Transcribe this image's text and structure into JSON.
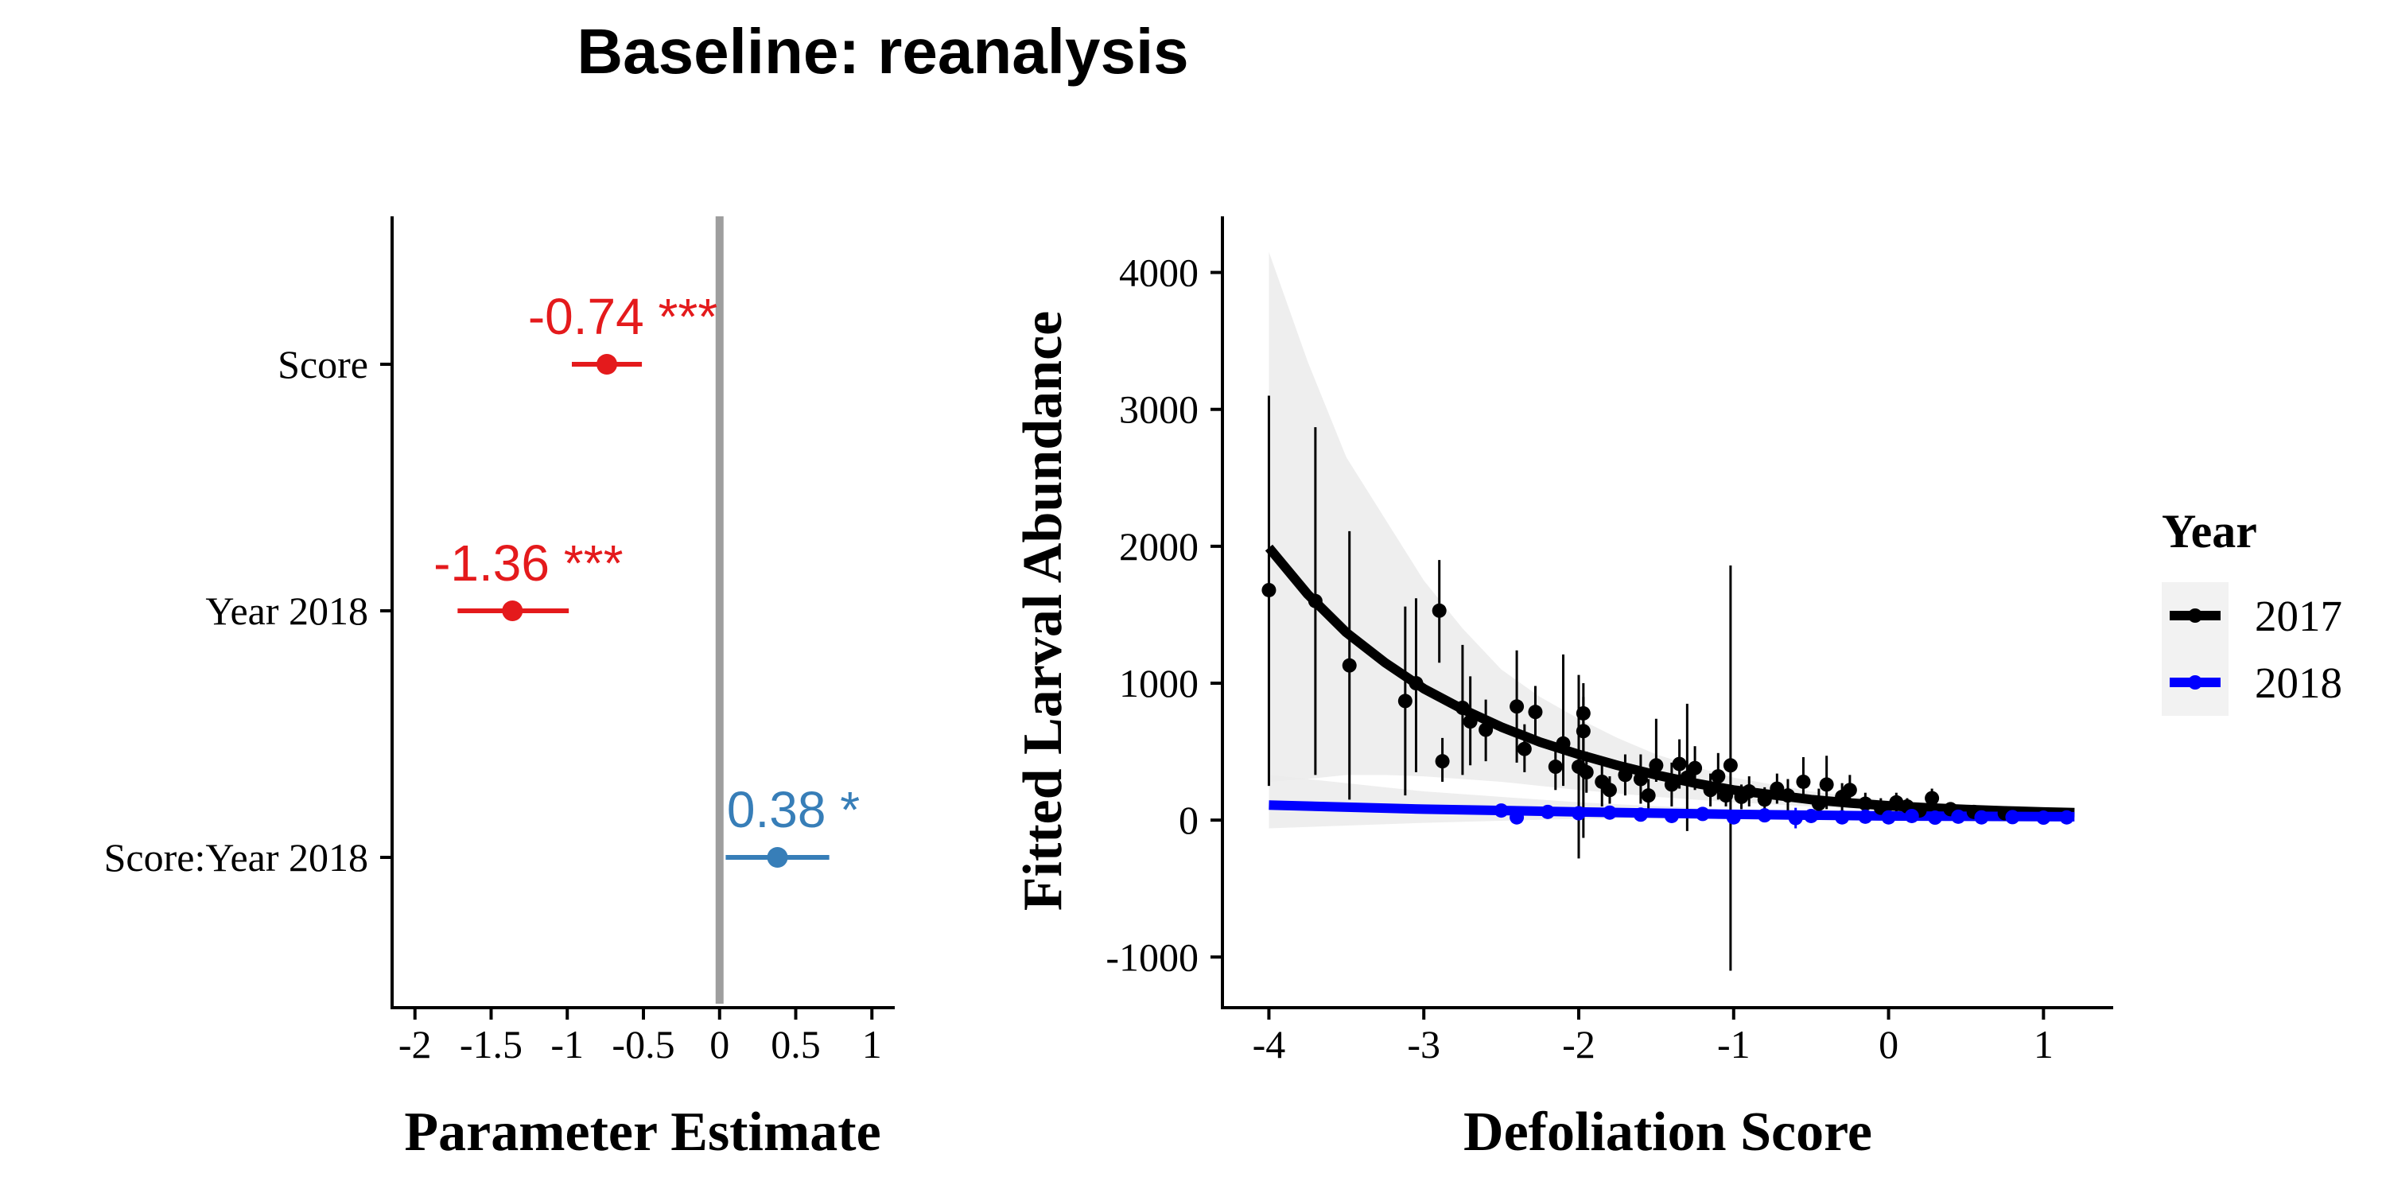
{
  "figure": {
    "title": "Baseline: reanalysis"
  },
  "chart_data": [
    {
      "type": "scatter",
      "role": "coefficient-plot",
      "xlabel": "Parameter Estimate",
      "ylabel": "",
      "xlim": [
        -2.15,
        1.15
      ],
      "xticks": [
        "-2",
        "-1.5",
        "-1",
        "-0.5",
        "0",
        "0.5",
        "1"
      ],
      "xtick_values": [
        -2,
        -1.5,
        -1,
        -0.5,
        0,
        0.5,
        1
      ],
      "zero_line": 0,
      "zero_line_color": "#9e9e9e",
      "grid": false,
      "terms": [
        {
          "name": "Score",
          "estimate": -0.74,
          "low": -0.97,
          "high": -0.51,
          "label": "-0.74 ***",
          "color": "#e41a1c"
        },
        {
          "name": "Year 2018",
          "estimate": -1.36,
          "low": -1.72,
          "high": -0.99,
          "label": "-1.36 ***",
          "color": "#e41a1c"
        },
        {
          "name": "Score:Year 2018",
          "estimate": 0.38,
          "low": 0.04,
          "high": 0.72,
          "label": "0.38 *",
          "color": "#377eb8"
        }
      ]
    },
    {
      "type": "line",
      "xlabel": "Defoliation Score",
      "ylabel": "Fitted Larval Abundance",
      "xlim": [
        -4.3,
        1.45
      ],
      "ylim": [
        -1370,
        4410
      ],
      "xticks": [
        -4,
        -3,
        -2,
        -1,
        0,
        1
      ],
      "yticks": [
        -1000,
        0,
        1000,
        2000,
        3000,
        4000
      ],
      "grid": false,
      "legend": {
        "title": "Year",
        "position": "right",
        "entries": [
          "2017",
          "2018"
        ]
      },
      "series": [
        {
          "name": "2017",
          "color": "#000000",
          "fit_x": [
            -4.0,
            -3.75,
            -3.5,
            -3.25,
            -3.0,
            -2.75,
            -2.5,
            -2.25,
            -2.0,
            -1.75,
            -1.5,
            -1.25,
            -1.0,
            -0.75,
            -0.5,
            -0.25,
            0.0,
            0.25,
            0.5,
            0.75,
            1.0,
            1.2
          ],
          "fit_y": [
            1990,
            1650,
            1370,
            1150,
            960,
            810,
            680,
            570,
            480,
            400,
            330,
            270,
            220,
            185,
            150,
            125,
            105,
            90,
            78,
            68,
            60,
            55
          ],
          "band_lower": [
            280,
            300,
            330,
            330,
            320,
            300,
            280,
            250,
            220,
            195,
            170,
            150,
            130,
            115,
            100,
            85,
            75,
            65,
            58,
            52,
            48,
            45
          ],
          "band_upper": [
            4150,
            3350,
            2650,
            2200,
            1750,
            1400,
            1100,
            900,
            740,
            600,
            480,
            390,
            310,
            260,
            210,
            175,
            145,
            125,
            105,
            92,
            80,
            72
          ],
          "points": [
            {
              "x": -4.0,
              "y": 1680,
              "low": 250,
              "high": 3100
            },
            {
              "x": -3.7,
              "y": 1600,
              "low": 330,
              "high": 2870
            },
            {
              "x": -3.48,
              "y": 1130,
              "low": 150,
              "high": 2110
            },
            {
              "x": -3.12,
              "y": 870,
              "low": 180,
              "high": 1560
            },
            {
              "x": -3.05,
              "y": 1000,
              "low": 350,
              "high": 1620
            },
            {
              "x": -2.9,
              "y": 1530,
              "low": 1150,
              "high": 1900
            },
            {
              "x": -2.88,
              "y": 430,
              "low": 280,
              "high": 600
            },
            {
              "x": -2.75,
              "y": 820,
              "low": 330,
              "high": 1280
            },
            {
              "x": -2.7,
              "y": 720,
              "low": 400,
              "high": 1050
            },
            {
              "x": -2.6,
              "y": 660,
              "low": 430,
              "high": 880
            },
            {
              "x": -2.4,
              "y": 830,
              "low": 420,
              "high": 1240
            },
            {
              "x": -2.35,
              "y": 520,
              "low": 350,
              "high": 700
            },
            {
              "x": -2.28,
              "y": 790,
              "low": 610,
              "high": 980
            },
            {
              "x": -2.15,
              "y": 390,
              "low": 220,
              "high": 560
            },
            {
              "x": -2.1,
              "y": 560,
              "low": 250,
              "high": 1210
            },
            {
              "x": -2.0,
              "y": 390,
              "low": -280,
              "high": 1060
            },
            {
              "x": -1.95,
              "y": 350,
              "low": 200,
              "high": 500
            },
            {
              "x": -1.97,
              "y": 780,
              "low": 450,
              "high": 900
            },
            {
              "x": -1.97,
              "y": 650,
              "low": -130,
              "high": 1000
            },
            {
              "x": -1.85,
              "y": 280,
              "low": 100,
              "high": 460
            },
            {
              "x": -1.8,
              "y": 220,
              "low": 120,
              "high": 320
            },
            {
              "x": -1.7,
              "y": 330,
              "low": 180,
              "high": 480
            },
            {
              "x": -1.6,
              "y": 300,
              "low": 120,
              "high": 480
            },
            {
              "x": -1.55,
              "y": 180,
              "low": 60,
              "high": 300
            },
            {
              "x": -1.5,
              "y": 400,
              "low": 280,
              "high": 740
            },
            {
              "x": -1.4,
              "y": 260,
              "low": 100,
              "high": 420
            },
            {
              "x": -1.35,
              "y": 410,
              "low": 230,
              "high": 590
            },
            {
              "x": -1.3,
              "y": 310,
              "low": -80,
              "high": 850
            },
            {
              "x": -1.25,
              "y": 380,
              "low": 220,
              "high": 540
            },
            {
              "x": -1.15,
              "y": 220,
              "low": 100,
              "high": 340
            },
            {
              "x": -1.1,
              "y": 320,
              "low": 150,
              "high": 490
            },
            {
              "x": -1.05,
              "y": 180,
              "low": 100,
              "high": 260
            },
            {
              "x": -1.02,
              "y": 400,
              "low": -1100,
              "high": 1860
            },
            {
              "x": -0.95,
              "y": 170,
              "low": 80,
              "high": 260
            },
            {
              "x": -0.9,
              "y": 210,
              "low": 100,
              "high": 320
            },
            {
              "x": -0.8,
              "y": 150,
              "low": 60,
              "high": 240
            },
            {
              "x": -0.72,
              "y": 230,
              "low": 120,
              "high": 340
            },
            {
              "x": -0.65,
              "y": 180,
              "low": 60,
              "high": 300
            },
            {
              "x": -0.55,
              "y": 280,
              "low": 140,
              "high": 460
            },
            {
              "x": -0.45,
              "y": 120,
              "low": 30,
              "high": 230
            },
            {
              "x": -0.4,
              "y": 260,
              "low": 80,
              "high": 470
            },
            {
              "x": -0.3,
              "y": 170,
              "low": 70,
              "high": 270
            },
            {
              "x": -0.25,
              "y": 220,
              "low": 110,
              "high": 330
            },
            {
              "x": -0.15,
              "y": 120,
              "low": 40,
              "high": 200
            },
            {
              "x": -0.05,
              "y": 90,
              "low": 20,
              "high": 160
            },
            {
              "x": 0.05,
              "y": 130,
              "low": 60,
              "high": 200
            },
            {
              "x": 0.12,
              "y": 100,
              "low": 40,
              "high": 160
            },
            {
              "x": 0.2,
              "y": 70,
              "low": 20,
              "high": 120
            },
            {
              "x": 0.28,
              "y": 160,
              "low": 90,
              "high": 230
            },
            {
              "x": 0.4,
              "y": 80,
              "low": 30,
              "high": 130
            },
            {
              "x": 0.55,
              "y": 60,
              "low": 20,
              "high": 100
            },
            {
              "x": 0.75,
              "y": 50,
              "low": 20,
              "high": 80
            }
          ]
        },
        {
          "name": "2018",
          "color": "#0000ff",
          "fit_x": [
            -4.0,
            -3.0,
            -2.0,
            -1.0,
            0.0,
            1.2
          ],
          "fit_y": [
            110,
            80,
            60,
            42,
            30,
            25
          ],
          "band_lower": [
            -60,
            -20,
            10,
            15,
            12,
            5
          ],
          "band_upper": [
            330,
            210,
            130,
            75,
            55,
            55
          ],
          "points": [
            {
              "x": -2.5,
              "y": 70,
              "low": 40,
              "high": 100
            },
            {
              "x": -2.4,
              "y": 20,
              "low": -10,
              "high": 50
            },
            {
              "x": -2.2,
              "y": 60,
              "low": 30,
              "high": 90
            },
            {
              "x": -2.0,
              "y": 50,
              "low": 20,
              "high": 80
            },
            {
              "x": -1.8,
              "y": 55,
              "low": 20,
              "high": 90
            },
            {
              "x": -1.6,
              "y": 40,
              "low": 10,
              "high": 70
            },
            {
              "x": -1.4,
              "y": 30,
              "low": 0,
              "high": 60
            },
            {
              "x": -1.2,
              "y": 45,
              "low": 10,
              "high": 80
            },
            {
              "x": -1.0,
              "y": 20,
              "low": -20,
              "high": 60
            },
            {
              "x": -0.8,
              "y": 35,
              "low": 5,
              "high": 65
            },
            {
              "x": -0.6,
              "y": 15,
              "low": -60,
              "high": 90
            },
            {
              "x": -0.5,
              "y": 30,
              "low": 0,
              "high": 60
            },
            {
              "x": -0.3,
              "y": 20,
              "low": -10,
              "high": 50
            },
            {
              "x": -0.15,
              "y": 25,
              "low": 0,
              "high": 50
            },
            {
              "x": 0.0,
              "y": 20,
              "low": 0,
              "high": 45
            },
            {
              "x": 0.15,
              "y": 30,
              "low": 5,
              "high": 55
            },
            {
              "x": 0.3,
              "y": 18,
              "low": 0,
              "high": 40
            },
            {
              "x": 0.45,
              "y": 25,
              "low": 5,
              "high": 45
            },
            {
              "x": 0.6,
              "y": 20,
              "low": 0,
              "high": 40
            },
            {
              "x": 0.8,
              "y": 22,
              "low": 5,
              "high": 40
            },
            {
              "x": 1.0,
              "y": 18,
              "low": 0,
              "high": 35
            },
            {
              "x": 1.15,
              "y": 20,
              "low": 5,
              "high": 35
            }
          ]
        }
      ],
      "band_color": "#ebebeb"
    }
  ]
}
